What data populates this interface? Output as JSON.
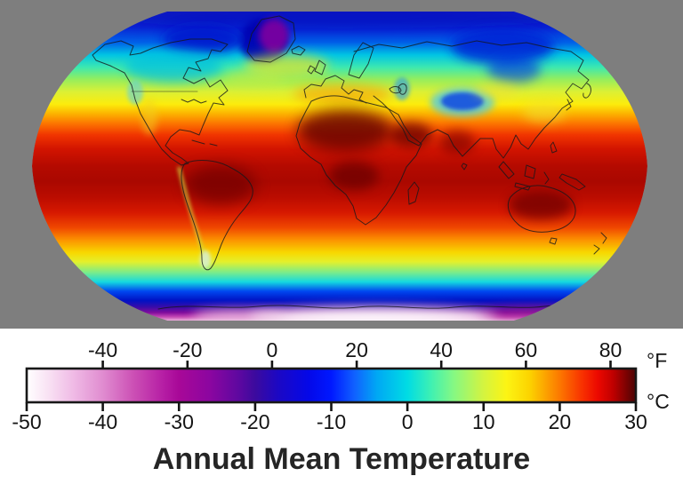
{
  "figure": {
    "title": "Annual Mean Temperature",
    "background_color": "#ffffff",
    "map_panel_background": "#7e7e7e"
  },
  "colorbar": {
    "unit_top_label": "°F",
    "unit_bottom_label": "°C",
    "f_tick_labels": [
      "-40",
      "-20",
      "0",
      "20",
      "40",
      "60",
      "80"
    ],
    "c_tick_labels": [
      "-50",
      "-40",
      "-30",
      "-20",
      "-10",
      "0",
      "10",
      "20",
      "30"
    ]
  },
  "chart_data": {
    "type": "heatmap",
    "title": "Annual Mean Temperature",
    "projection": "Robinson world map",
    "variable": "annual mean surface temperature shown as color over a world map",
    "legend_position": "bottom horizontal colorbar",
    "units": [
      "°F",
      "°C"
    ],
    "scale_min_c": -50,
    "scale_max_c": 30,
    "f_tick_values": [
      -40,
      -20,
      0,
      20,
      40,
      60,
      80
    ],
    "c_tick_values": [
      -50,
      -40,
      -30,
      -20,
      -10,
      0,
      10,
      20,
      30
    ],
    "colorscale": [
      {
        "value_c": -50,
        "color": "#ffffff"
      },
      {
        "value_c": -47,
        "color": "#f8e0f3"
      },
      {
        "value_c": -44,
        "color": "#f0bce6"
      },
      {
        "value_c": -40,
        "color": "#e08cd0"
      },
      {
        "value_c": -36,
        "color": "#cc50b5"
      },
      {
        "value_c": -32,
        "color": "#b51da4"
      },
      {
        "value_c": -30,
        "color": "#a80898"
      },
      {
        "value_c": -26,
        "color": "#8c06a0"
      },
      {
        "value_c": -22,
        "color": "#5c08a0"
      },
      {
        "value_c": -20,
        "color": "#3c0a9e"
      },
      {
        "value_c": -17,
        "color": "#1c08c4"
      },
      {
        "value_c": -13,
        "color": "#0408e8"
      },
      {
        "value_c": -10,
        "color": "#0018ff"
      },
      {
        "value_c": -7,
        "color": "#1060ff"
      },
      {
        "value_c": -4,
        "color": "#00a8f4"
      },
      {
        "value_c": 0,
        "color": "#00dce4"
      },
      {
        "value_c": 3,
        "color": "#3cf0b4"
      },
      {
        "value_c": 6,
        "color": "#84f884"
      },
      {
        "value_c": 10,
        "color": "#d4f440"
      },
      {
        "value_c": 13,
        "color": "#fcf414"
      },
      {
        "value_c": 16,
        "color": "#fcd400"
      },
      {
        "value_c": 20,
        "color": "#fc7800"
      },
      {
        "value_c": 23,
        "color": "#f83000"
      },
      {
        "value_c": 25,
        "color": "#ec0800"
      },
      {
        "value_c": 27,
        "color": "#c00000"
      },
      {
        "value_c": 30,
        "color": "#4a0404"
      }
    ],
    "notable_features": [
      "dark red band (25-30 °C) along the equator and tropics",
      "very dark red over Sahara, Arabia, India, Amazon, Congo and interior Australia",
      "yellow-to-cyan transition across mid-latitudes",
      "blue over Siberia, Canadian Arctic and Tibetan Plateau",
      "purple cold patch over interior Greenland",
      "white/pink (below -40 °C) over interior Antarctica"
    ]
  }
}
